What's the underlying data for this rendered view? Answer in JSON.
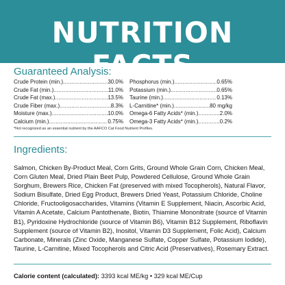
{
  "header": {
    "title": "NUTRITION FACTS",
    "bg_color": "#2b8e98"
  },
  "analysis": {
    "title": "Guaranteed Analysis:",
    "left": [
      {
        "name": "Crude Protein (min.)",
        "value": "30.0%"
      },
      {
        "name": "Crude Fat (min.)",
        "value": "11.0%"
      },
      {
        "name": "Crude Fat (max.)",
        "value": "13.5%"
      },
      {
        "name": "Crude Fiber (max.)",
        "value": "8.3%"
      },
      {
        "name": "Moisture (max.)",
        "value": "10.0%"
      },
      {
        "name": "Calcium (min.)",
        "value": "0.75%"
      }
    ],
    "right": [
      {
        "name": "Phosphorus (min.)",
        "value": "0.65%"
      },
      {
        "name": "Potassium (min.)",
        "value": "0.65%"
      },
      {
        "name": "Taurine (min.)",
        "value": "0.13%"
      },
      {
        "name": "L-Carnitine* (min.)",
        "value": "80 mg/kg"
      },
      {
        "name": "Omega-6 Fatty Acids* (min.)",
        "value": "2.0%"
      },
      {
        "name": "Omega-3 Fatty Acids* (min.)",
        "value": "0.2%"
      }
    ],
    "footnote": "*Not recognized as an essential nutrient by the AAFCO Cat Food Nutrient Profiles."
  },
  "ingredients": {
    "title": "Ingredients:",
    "text": "Salmon, Chicken By-Product Meal, Corn Grits, Ground Whole Grain Corn, Chicken Meal, Corn Gluten Meal, Dried Plain Beet Pulp, Powdered Cellulose, Ground Whole Grain Sorghum, Brewers Rice, Chicken Fat (preserved with mixed Tocopherols), Natural Flavor, Sodium Bisulfate, Dried Egg Product, Brewers Dried Yeast, Potassium Chloride, Choline Chloride, Fructooligosaccharides, Vitamins (Vitamin E Supplement, Niacin, Ascorbic Acid, Vitamin A Acetate, Calcium Pantothenate, Biotin, Thiamine Mononitrate (source of Vitamin B1), Pyridoxine Hydrochloride (source of Vitamin B6), Vitamin B12 Supplement, Riboflavin Supplement (source of Vitamin B2), Inositol, Vitamin D3 Supplement, Folic Acid), Calcium Carbonate, Minerals (Zinc Oxide, Manganese Sulfate, Copper Sulfate, Potassium Iodide), Taurine, L-Carnitine, Mixed Tocopherols and Citric Acid (Preservatives), Rosemary Extract."
  },
  "calorie": {
    "label": "Calorie content (calculated):",
    "value": "3393 kcal ME/kg • 329 kcal ME/Cup"
  }
}
